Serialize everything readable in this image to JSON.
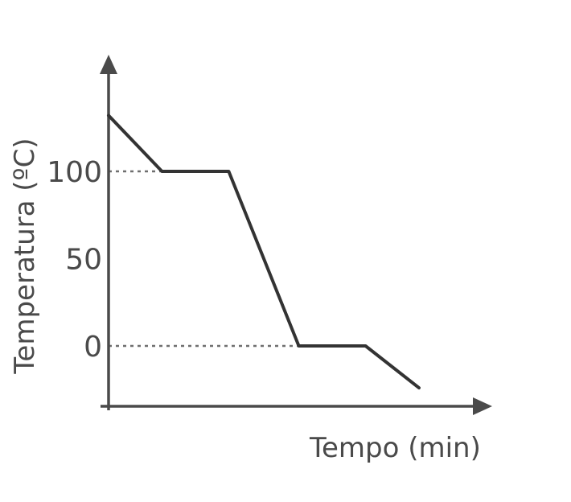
{
  "chart_data": {
    "type": "line",
    "xlabel": "Tempo (min)",
    "ylabel": "Temperatura (ºC)",
    "y_ticks": [
      {
        "value": 100,
        "label": "100"
      },
      {
        "value": 50,
        "label": "50"
      },
      {
        "value": 0,
        "label": "0"
      }
    ],
    "ylim": [
      -34,
      170
    ],
    "xlim": [
      0,
      11
    ],
    "series": [
      {
        "x": [
          0,
          1.6,
          3.6,
          5.7,
          7.7,
          9.3
        ],
        "y": [
          132,
          100,
          100,
          0,
          0,
          -24
        ]
      }
    ],
    "reference_lines": [
      {
        "value": 100,
        "style": "dotted"
      },
      {
        "value": 0,
        "style": "dotted"
      }
    ],
    "grid": false,
    "line_color": "#333333",
    "axis_color": "#4a4a4a"
  }
}
